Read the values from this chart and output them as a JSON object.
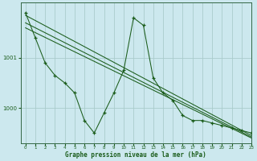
{
  "background_color": "#cce8ee",
  "grid_color": "#aacccc",
  "line_color": "#1a5c1a",
  "xlabel": "Graphe pression niveau de la mer (hPa)",
  "xlim": [
    -0.5,
    23
  ],
  "ylim": [
    999.3,
    1002.1
  ],
  "yticks": [
    1000,
    1001
  ],
  "xticks": [
    0,
    1,
    2,
    3,
    4,
    5,
    6,
    7,
    8,
    9,
    10,
    11,
    12,
    13,
    14,
    15,
    16,
    17,
    18,
    19,
    20,
    21,
    22,
    23
  ],
  "pressure_data": [
    1001.9,
    1001.4,
    1000.9,
    1000.65,
    1000.5,
    1000.3,
    999.75,
    999.5,
    999.9,
    1000.3,
    1000.75,
    1001.8,
    1001.65,
    1000.6,
    1000.3,
    1000.15,
    999.85,
    999.75,
    999.75,
    999.7,
    999.65,
    999.6,
    999.55,
    999.5
  ],
  "trend1_x": [
    0,
    23
  ],
  "trend1_y": [
    1001.85,
    999.45
  ],
  "trend2_x": [
    0,
    23
  ],
  "trend2_y": [
    1001.6,
    999.4
  ],
  "trend3_x": [
    0,
    23
  ],
  "trend3_y": [
    1001.7,
    999.42
  ],
  "marker_data_x": [
    0,
    1,
    2,
    3,
    4,
    5,
    6,
    7,
    8,
    9,
    10,
    11,
    12,
    13,
    14,
    15,
    16,
    17,
    18,
    19,
    20,
    21,
    22,
    23
  ],
  "marker_data_y": [
    1001.9,
    1001.4,
    1000.9,
    1000.65,
    1000.5,
    1000.3,
    999.75,
    999.5,
    999.9,
    1000.3,
    1000.75,
    1001.8,
    1001.65,
    1000.6,
    1000.3,
    1000.15,
    999.85,
    999.75,
    999.75,
    999.7,
    999.65,
    999.6,
    999.55,
    999.5
  ]
}
